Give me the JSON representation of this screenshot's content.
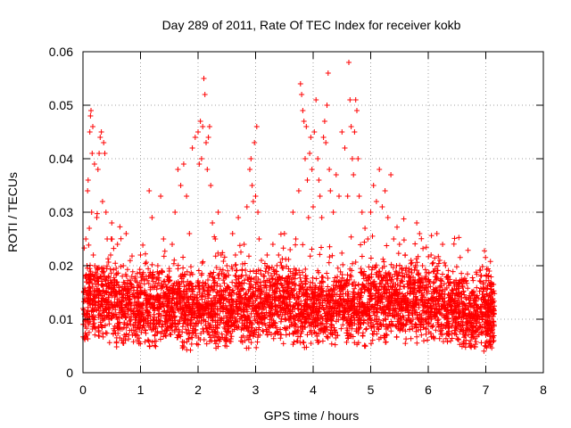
{
  "chart_data": {
    "type": "scatter",
    "title": "Day 289 of 2011, Rate Of TEC Index for receiver kokb",
    "xlabel": "GPS time / hours",
    "ylabel": "ROTI / TECUs",
    "xlim": [
      0,
      8
    ],
    "ylim": [
      0,
      0.06
    ],
    "xticks": [
      "0",
      "1",
      "2",
      "3",
      "4",
      "5",
      "6",
      "7",
      "8"
    ],
    "yticks": [
      "0",
      "0.01",
      "0.02",
      "0.03",
      "0.04",
      "0.05",
      "0.06"
    ],
    "grid": true,
    "legend": "none",
    "marker": "+",
    "color": "#ff0000",
    "series": [
      {
        "points": [
          [
            0.02,
            0.011
          ],
          [
            0.04,
            0.018
          ],
          [
            0.05,
            0.025
          ],
          [
            0.06,
            0.007
          ],
          [
            0.07,
            0.02
          ],
          [
            0.08,
            0.034
          ],
          [
            0.09,
            0.036
          ],
          [
            0.1,
            0.014
          ],
          [
            0.11,
            0.027
          ],
          [
            0.12,
            0.045
          ],
          [
            0.13,
            0.048
          ],
          [
            0.14,
            0.049
          ],
          [
            0.15,
            0.03
          ],
          [
            0.16,
            0.041
          ],
          [
            0.17,
            0.046
          ],
          [
            0.18,
            0.022
          ],
          [
            0.2,
            0.039
          ],
          [
            0.22,
            0.013
          ],
          [
            0.24,
            0.029
          ],
          [
            0.26,
            0.038
          ],
          [
            0.28,
            0.041
          ],
          [
            0.3,
            0.044
          ],
          [
            0.32,
            0.045
          ],
          [
            0.34,
            0.032
          ],
          [
            0.36,
            0.043
          ],
          [
            0.38,
            0.041
          ],
          [
            0.4,
            0.03
          ],
          [
            0.42,
            0.025
          ],
          [
            0.45,
            0.018
          ],
          [
            0.48,
            0.022
          ],
          [
            0.5,
            0.028
          ],
          [
            0.55,
            0.017
          ],
          [
            0.6,
            0.024
          ],
          [
            0.65,
            0.015
          ],
          [
            0.7,
            0.02
          ],
          [
            0.75,
            0.026
          ],
          [
            0.8,
            0.012
          ],
          [
            0.85,
            0.018
          ],
          [
            0.9,
            0.009
          ],
          [
            0.95,
            0.016
          ],
          [
            1.0,
            0.022
          ],
          [
            1.05,
            0.013
          ],
          [
            1.1,
            0.018
          ],
          [
            1.15,
            0.034
          ],
          [
            1.2,
            0.029
          ],
          [
            1.25,
            0.012
          ],
          [
            1.3,
            0.02
          ],
          [
            1.35,
            0.033
          ],
          [
            1.4,
            0.025
          ],
          [
            1.45,
            0.016
          ],
          [
            1.5,
            0.019
          ],
          [
            1.55,
            0.024
          ],
          [
            1.6,
            0.03
          ],
          [
            1.65,
            0.038
          ],
          [
            1.7,
            0.035
          ],
          [
            1.75,
            0.039
          ],
          [
            1.8,
            0.033
          ],
          [
            1.85,
            0.026
          ],
          [
            1.9,
            0.042
          ],
          [
            1.95,
            0.044
          ],
          [
            2.0,
            0.045
          ],
          [
            2.02,
            0.039
          ],
          [
            2.04,
            0.047
          ],
          [
            2.06,
            0.04
          ],
          [
            2.08,
            0.046
          ],
          [
            2.1,
            0.055
          ],
          [
            2.12,
            0.052
          ],
          [
            2.14,
            0.043
          ],
          [
            2.16,
            0.038
          ],
          [
            2.18,
            0.044
          ],
          [
            2.2,
            0.046
          ],
          [
            2.22,
            0.035
          ],
          [
            2.25,
            0.028
          ],
          [
            2.3,
            0.025
          ],
          [
            2.35,
            0.03
          ],
          [
            2.4,
            0.022
          ],
          [
            2.45,
            0.018
          ],
          [
            2.5,
            0.02
          ],
          [
            2.55,
            0.015
          ],
          [
            2.6,
            0.026
          ],
          [
            2.65,
            0.022
          ],
          [
            2.7,
            0.029
          ],
          [
            2.75,
            0.018
          ],
          [
            2.8,
            0.024
          ],
          [
            2.85,
            0.031
          ],
          [
            2.9,
            0.038
          ],
          [
            2.92,
            0.04
          ],
          [
            2.94,
            0.035
          ],
          [
            2.96,
            0.032
          ],
          [
            2.98,
            0.043
          ],
          [
            3.0,
            0.033
          ],
          [
            3.02,
            0.046
          ],
          [
            3.04,
            0.03
          ],
          [
            3.06,
            0.025
          ],
          [
            3.1,
            0.021
          ],
          [
            3.15,
            0.018
          ],
          [
            3.2,
            0.022
          ],
          [
            3.25,
            0.017
          ],
          [
            3.3,
            0.024
          ],
          [
            3.35,
            0.019
          ],
          [
            3.4,
            0.022
          ],
          [
            3.45,
            0.02
          ],
          [
            3.5,
            0.026
          ],
          [
            3.55,
            0.017
          ],
          [
            3.6,
            0.023
          ],
          [
            3.65,
            0.03
          ],
          [
            3.7,
            0.025
          ],
          [
            3.75,
            0.034
          ],
          [
            3.78,
            0.054
          ],
          [
            3.8,
            0.052
          ],
          [
            3.82,
            0.049
          ],
          [
            3.84,
            0.047
          ],
          [
            3.86,
            0.04
          ],
          [
            3.88,
            0.046
          ],
          [
            3.9,
            0.036
          ],
          [
            3.92,
            0.029
          ],
          [
            3.94,
            0.041
          ],
          [
            3.96,
            0.044
          ],
          [
            3.98,
            0.038
          ],
          [
            4.0,
            0.031
          ],
          [
            4.02,
            0.045
          ],
          [
            4.05,
            0.051
          ],
          [
            4.08,
            0.04
          ],
          [
            4.1,
            0.036
          ],
          [
            4.12,
            0.033
          ],
          [
            4.15,
            0.029
          ],
          [
            4.18,
            0.044
          ],
          [
            4.2,
            0.047
          ],
          [
            4.22,
            0.043
          ],
          [
            4.24,
            0.05
          ],
          [
            4.26,
            0.056
          ],
          [
            4.28,
            0.038
          ],
          [
            4.3,
            0.034
          ],
          [
            4.35,
            0.03
          ],
          [
            4.4,
            0.037
          ],
          [
            4.45,
            0.033
          ],
          [
            4.5,
            0.045
          ],
          [
            4.55,
            0.042
          ],
          [
            4.6,
            0.033
          ],
          [
            4.62,
            0.058
          ],
          [
            4.64,
            0.051
          ],
          [
            4.66,
            0.046
          ],
          [
            4.68,
            0.04
          ],
          [
            4.7,
            0.037
          ],
          [
            4.72,
            0.045
          ],
          [
            4.74,
            0.051
          ],
          [
            4.76,
            0.049
          ],
          [
            4.78,
            0.04
          ],
          [
            4.8,
            0.033
          ],
          [
            4.85,
            0.03
          ],
          [
            4.9,
            0.027
          ],
          [
            4.95,
            0.025
          ],
          [
            5.0,
            0.03
          ],
          [
            5.05,
            0.035
          ],
          [
            5.1,
            0.032
          ],
          [
            5.15,
            0.038
          ],
          [
            5.2,
            0.031
          ],
          [
            5.25,
            0.034
          ],
          [
            5.3,
            0.029
          ],
          [
            5.35,
            0.037
          ],
          [
            5.4,
            0.025
          ],
          [
            5.45,
            0.02
          ],
          [
            5.5,
            0.024
          ],
          [
            5.55,
            0.018
          ],
          [
            5.6,
            0.022
          ],
          [
            5.65,
            0.016
          ],
          [
            5.7,
            0.021
          ],
          [
            5.75,
            0.017
          ],
          [
            5.8,
            0.028
          ],
          [
            5.85,
            0.026
          ],
          [
            5.9,
            0.02
          ],
          [
            5.95,
            0.018
          ],
          [
            6.0,
            0.016
          ],
          [
            6.05,
            0.022
          ],
          [
            6.1,
            0.019
          ],
          [
            6.15,
            0.026
          ],
          [
            6.2,
            0.021
          ],
          [
            6.25,
            0.024
          ],
          [
            6.3,
            0.02
          ],
          [
            6.35,
            0.018
          ],
          [
            6.4,
            0.015
          ],
          [
            6.45,
            0.017
          ],
          [
            6.5,
            0.013
          ],
          [
            6.55,
            0.011
          ],
          [
            6.6,
            0.016
          ],
          [
            6.65,
            0.012
          ],
          [
            6.7,
            0.014
          ],
          [
            6.75,
            0.011
          ],
          [
            6.8,
            0.013
          ],
          [
            6.85,
            0.01
          ],
          [
            6.9,
            0.012
          ],
          [
            6.95,
            0.014
          ],
          [
            7.0,
            0.011
          ],
          [
            7.02,
            0.013
          ],
          [
            7.04,
            0.018
          ],
          [
            7.06,
            0.019
          ],
          [
            7.08,
            0.012
          ],
          [
            7.1,
            0.015
          ],
          [
            7.12,
            0.009
          ],
          [
            7.14,
            0.006
          ]
        ],
        "band": [
          [
            0.0,
            0.012
          ],
          [
            0.25,
            0.014
          ],
          [
            0.5,
            0.013
          ],
          [
            0.75,
            0.012
          ],
          [
            1.0,
            0.012
          ],
          [
            1.25,
            0.012
          ],
          [
            1.5,
            0.013
          ],
          [
            1.75,
            0.012
          ],
          [
            2.0,
            0.012
          ],
          [
            2.25,
            0.012
          ],
          [
            2.5,
            0.012
          ],
          [
            2.75,
            0.012
          ],
          [
            3.0,
            0.012
          ],
          [
            3.25,
            0.013
          ],
          [
            3.5,
            0.013
          ],
          [
            3.75,
            0.012
          ],
          [
            4.0,
            0.012
          ],
          [
            4.25,
            0.012
          ],
          [
            4.5,
            0.013
          ],
          [
            4.75,
            0.012
          ],
          [
            5.0,
            0.013
          ],
          [
            5.25,
            0.013
          ],
          [
            5.5,
            0.013
          ],
          [
            5.75,
            0.013
          ],
          [
            6.0,
            0.013
          ],
          [
            6.25,
            0.013
          ],
          [
            6.5,
            0.012
          ],
          [
            6.75,
            0.011
          ],
          [
            7.0,
            0.011
          ],
          [
            7.15,
            0.011
          ]
        ]
      }
    ]
  }
}
